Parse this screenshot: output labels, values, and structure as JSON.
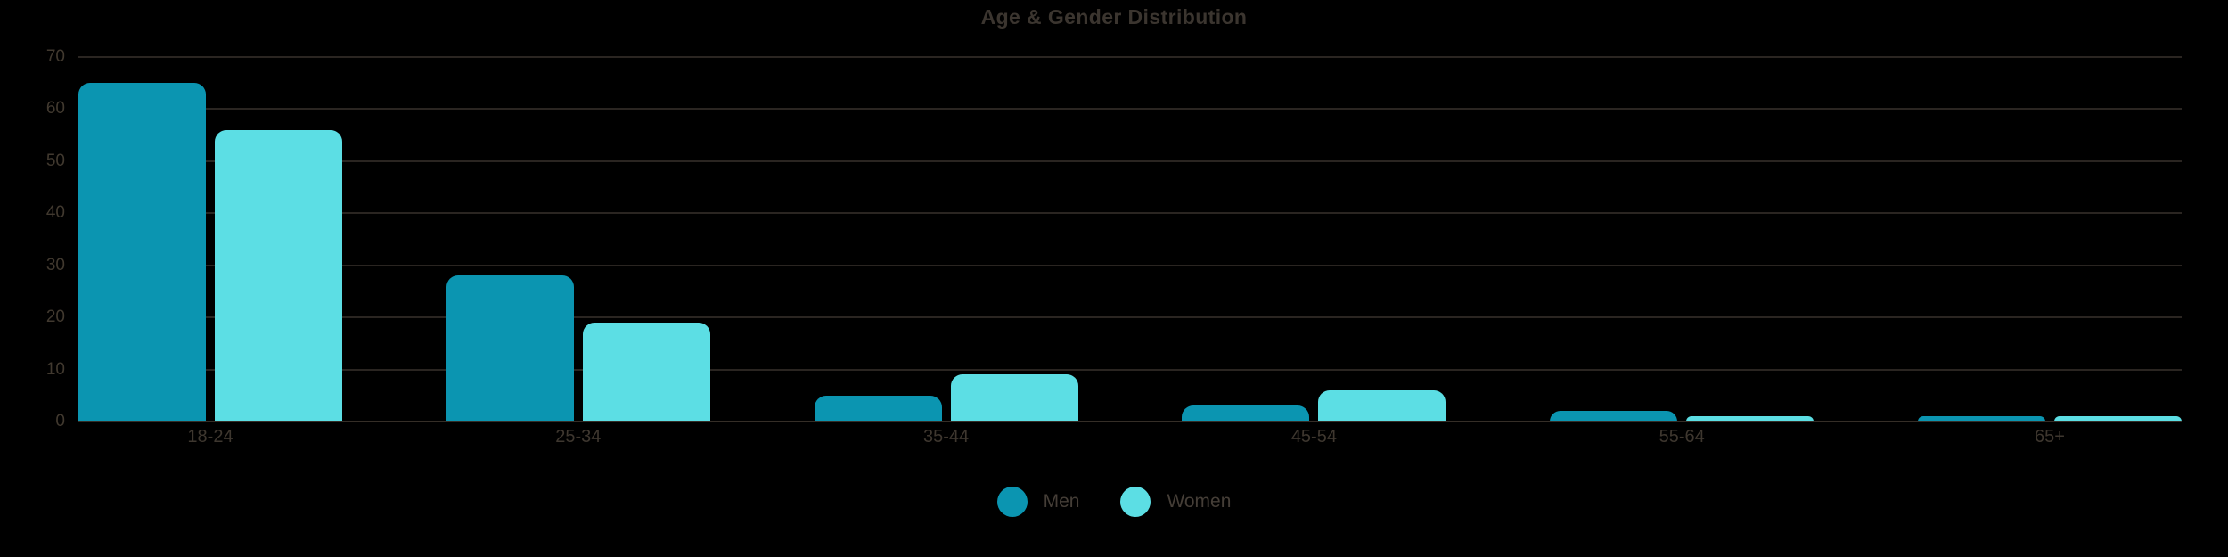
{
  "chart_data": {
    "type": "bar",
    "title": "Age & Gender Distribution",
    "categories": [
      "18-24",
      "25-34",
      "35-44",
      "45-54",
      "55-64",
      "65+"
    ],
    "series": [
      {
        "name": "Men",
        "color": "#0b95b1",
        "values": [
          65,
          28,
          5,
          3,
          2,
          1
        ]
      },
      {
        "name": "Women",
        "color": "#5cdee4",
        "values": [
          56,
          19,
          9,
          6,
          1,
          1
        ]
      }
    ],
    "xlabel": "",
    "ylabel": "",
    "ylim": [
      0,
      70
    ],
    "yticks": [
      70,
      60,
      50,
      40,
      30,
      20,
      10,
      0
    ],
    "grid": true,
    "legend_position": "bottom"
  },
  "colors": {
    "background": "#000000",
    "title_text": "#3b352f",
    "axis_text": "#41392f",
    "gridline": "#2a2521",
    "zero_line": "#352e27"
  }
}
